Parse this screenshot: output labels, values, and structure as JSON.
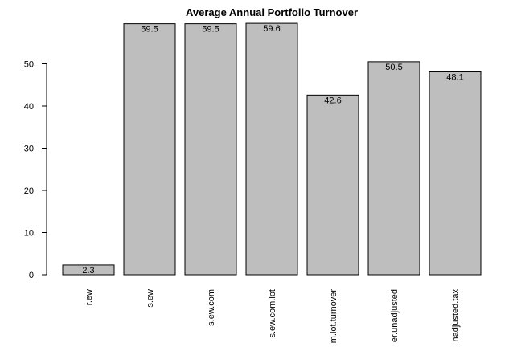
{
  "chart_data": {
    "type": "bar",
    "title": "Average Annual Portfolio Turnover",
    "xlabel": "",
    "ylabel": "",
    "categories": [
      "r.ew",
      "s.ew",
      "s.ew.com",
      "s.ew.com.lot",
      "m.lot.turnover",
      "er.unadjusted",
      "nadjusted.tax"
    ],
    "values": [
      2.3,
      59.5,
      59.5,
      59.6,
      42.6,
      50.5,
      48.1
    ],
    "data_labels": [
      "2.3",
      "59.5",
      "59.5",
      "59.6",
      "42.6",
      "50.5",
      "48.1"
    ],
    "yticks": [
      0,
      10,
      20,
      30,
      40,
      50
    ],
    "ytick_labels": [
      "0",
      "10",
      "20",
      "30",
      "40",
      "50"
    ],
    "ylim": [
      0,
      60
    ],
    "grid": false,
    "legend": "none",
    "colors": {
      "bar_fill": "#bebebe",
      "bar_stroke": "#000000"
    }
  }
}
